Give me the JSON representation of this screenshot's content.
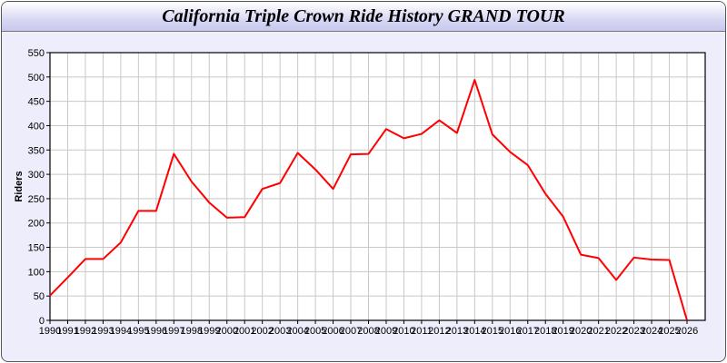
{
  "window": {
    "title": "California Triple Crown Ride History GRAND TOUR"
  },
  "chart_data": {
    "type": "line",
    "title": "California Triple Crown Ride History GRAND TOUR",
    "xlabel": "",
    "ylabel": "Riders",
    "ylim": [
      0,
      550
    ],
    "yticks": [
      0,
      50,
      100,
      150,
      200,
      250,
      300,
      350,
      400,
      450,
      500,
      550
    ],
    "grid": true,
    "line_color": "#ff0000",
    "x": [
      1990,
      1991,
      1992,
      1993,
      1994,
      1995,
      1996,
      1997,
      1998,
      1999,
      2000,
      2001,
      2002,
      2003,
      2004,
      2005,
      2006,
      2007,
      2008,
      2009,
      2010,
      2011,
      2012,
      2013,
      2014,
      2015,
      2016,
      2017,
      2018,
      2019,
      2020,
      2021,
      2022,
      2023,
      2024,
      2025,
      2026
    ],
    "series": [
      {
        "values": [
          51,
          88,
          126,
          126,
          160,
          225,
          225,
          342,
          285,
          242,
          211,
          212,
          270,
          282,
          344,
          310,
          270,
          341,
          342,
          393,
          374,
          383,
          411,
          385,
          494,
          382,
          346,
          319,
          260,
          213,
          135,
          128,
          83,
          129,
          125,
          124,
          0
        ]
      }
    ]
  }
}
